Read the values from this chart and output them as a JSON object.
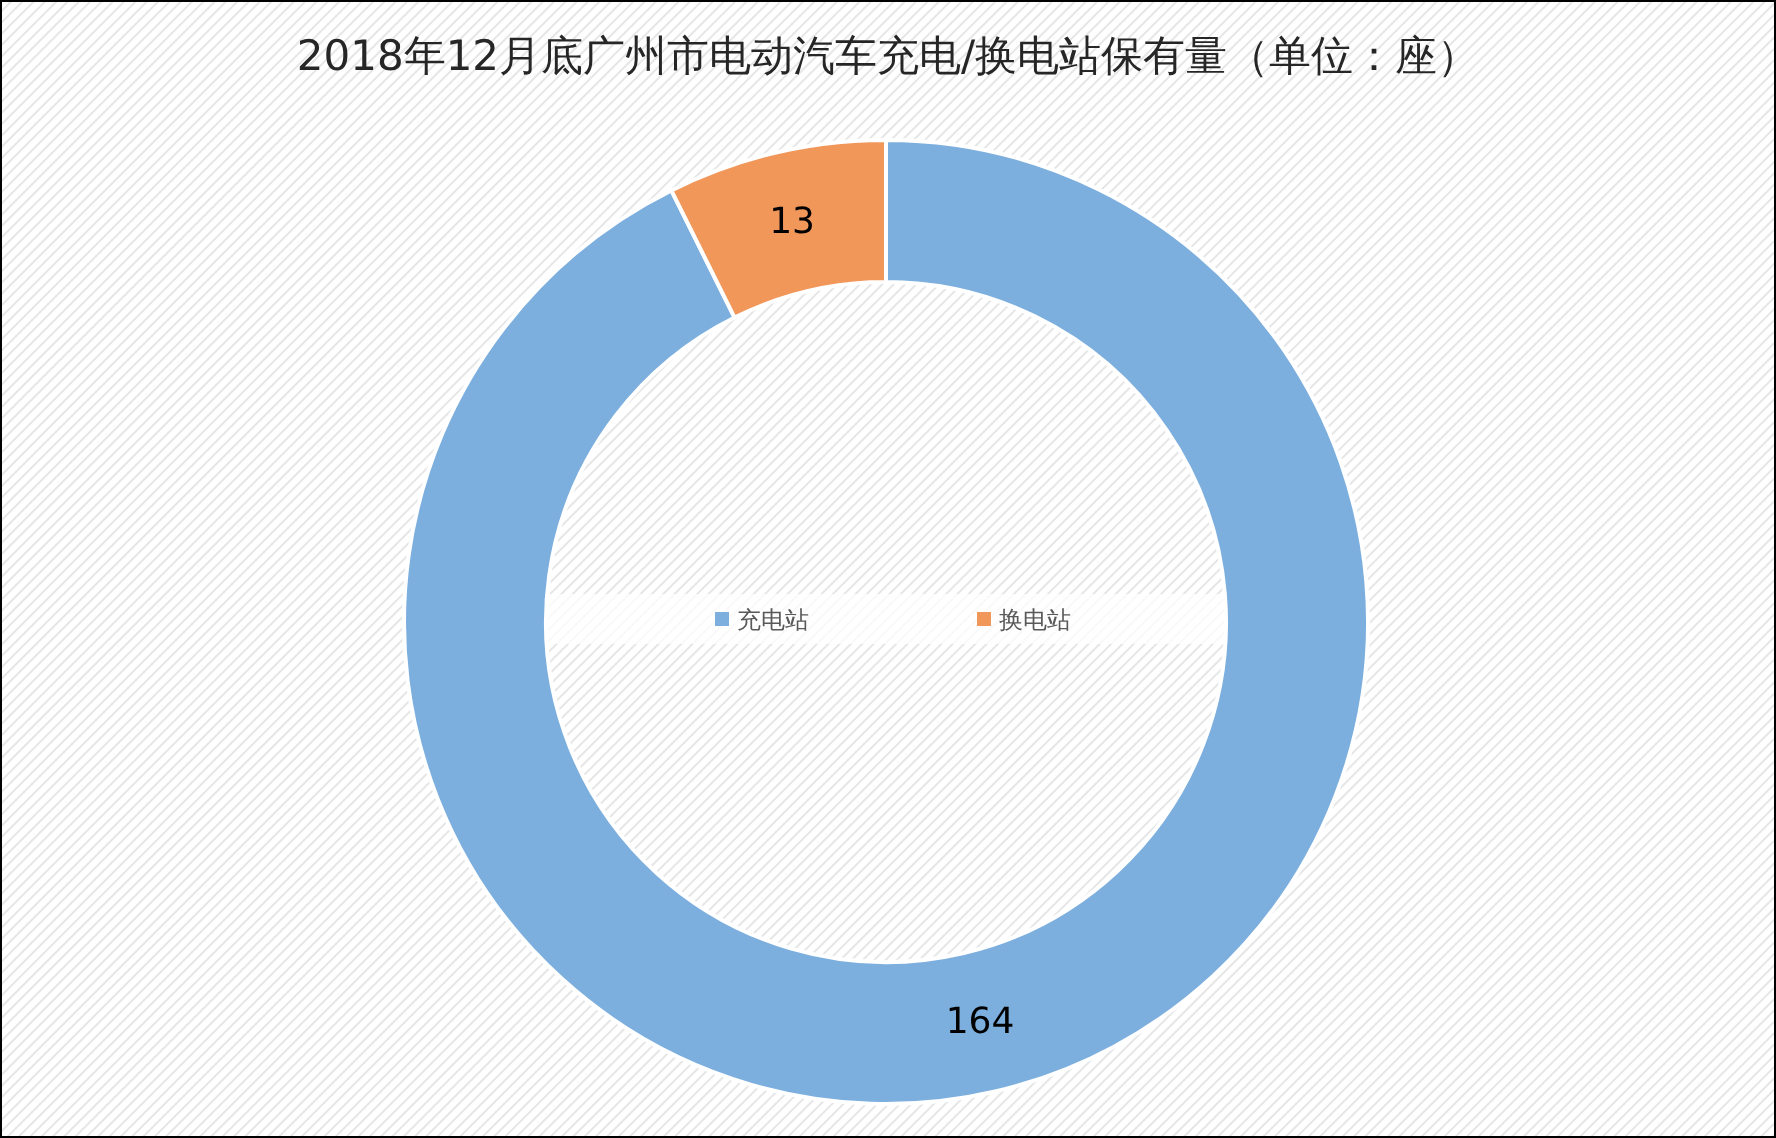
{
  "chart_data": {
    "type": "donut",
    "title": "2018年12月底广州市电动汽车充电/换电站保有量（单位：座）",
    "categories": [
      "充电站",
      "换电站"
    ],
    "values": [
      164,
      13
    ],
    "colors": [
      "#7cafde",
      "#f1975a"
    ],
    "data_labels": true,
    "legend": "center"
  }
}
